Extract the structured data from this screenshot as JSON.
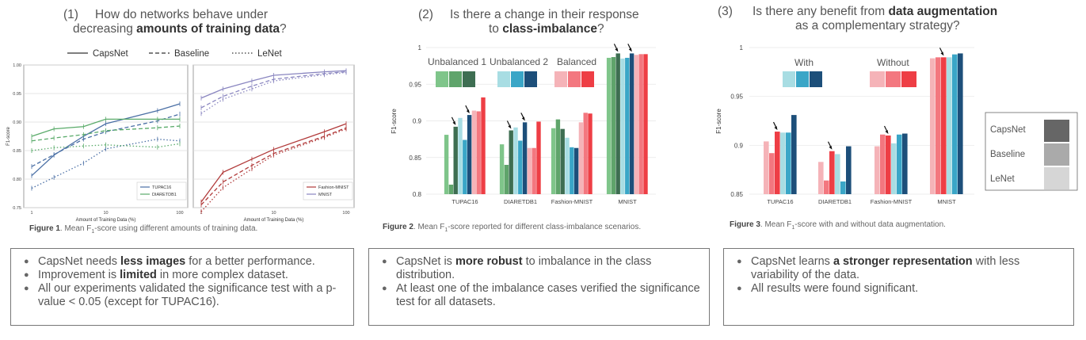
{
  "panels": [
    {
      "number": "(1)",
      "question_pre": "How do networks behave under",
      "question_mid": "decreasing ",
      "question_bold": "amounts of training data",
      "question_post": "?",
      "caption_bold": "Figure 1",
      "caption_text": ". Mean F",
      "caption_sub": "1",
      "caption_tail": "-score using different amounts of training data.",
      "bullets": [
        {
          "pre": "CapsNet needs ",
          "bold": "less images",
          "post": " for a better performance."
        },
        {
          "pre": "Improvement is ",
          "bold": "limited",
          "post": " in more complex dataset."
        },
        {
          "pre": "All our experiments validated the significance test with a p-value < 0.05 (except for TUPAC16).",
          "bold": "",
          "post": ""
        }
      ]
    },
    {
      "number": "(2)",
      "question_pre": "Is there a change in their response",
      "question_mid": "to ",
      "question_bold": "class-imbalance",
      "question_post": "?",
      "caption_bold": "Figure 2",
      "caption_text": ". Mean F",
      "caption_sub": "1",
      "caption_tail": "-score reported for different class-imbalance scenarios.",
      "bullets": [
        {
          "pre": "CapsNet is ",
          "bold": "more robust",
          "post": " to imbalance in the class distribution."
        },
        {
          "pre": "At least one of the imbalance cases verified the significance test for all datasets.",
          "bold": "",
          "post": ""
        }
      ]
    },
    {
      "number": "(3)",
      "question_pre": "Is there any benefit from ",
      "question_bold_first": "data augmentation",
      "question_line2": "as a complementary strategy?",
      "caption_bold": "Figure 3",
      "caption_text": ". Mean F",
      "caption_sub": "1",
      "caption_tail": "-score with and without data augmentation.",
      "bullets": [
        {
          "pre": "CapsNet learns ",
          "bold": "a stronger representation",
          "post": " with less variability of the data."
        },
        {
          "pre": "All results were found significant.",
          "bold": "",
          "post": ""
        }
      ]
    }
  ],
  "colors": {
    "green": [
      "#7fc58a",
      "#5fa46b",
      "#3e6e52"
    ],
    "blue": [
      "#a8dde3",
      "#3aa6c7",
      "#1d4f7a"
    ],
    "red": [
      "#f5b3b8",
      "#f3777f",
      "#ee3e45"
    ],
    "line_blue": "#4a6fa5",
    "line_green": "#5aab6a",
    "line_red": "#b13a3a",
    "line_purple": "#8a86c0"
  },
  "chart_data": [
    {
      "type": "line",
      "legend": [
        "CapsNet",
        "Baseline",
        "LeNet"
      ],
      "legend_styles": [
        "solid",
        "dashed",
        "dotted"
      ],
      "subplots": [
        {
          "xlabel": "Amount of Training Data (%)",
          "ylabel": "F1-score",
          "xscale": "log",
          "xticks": [
            "1",
            "10",
            "100"
          ],
          "yticks": [
            "0.75",
            "0.80",
            "0.85",
            "0.90",
            "0.95",
            "1.00"
          ],
          "ylim": [
            0.75,
            1.0
          ],
          "grid": true,
          "legend_position": "lower-right",
          "series": [
            {
              "name": "TUPAC16",
              "style": "solid",
              "x": [
                1,
                2,
                5,
                10,
                50,
                100
              ],
              "y": [
                0.806,
                0.842,
                0.875,
                0.897,
                0.92,
                0.932
              ]
            },
            {
              "name": "TUPAC16",
              "style": "dashed",
              "x": [
                1,
                2,
                5,
                10,
                50,
                100
              ],
              "y": [
                0.822,
                0.843,
                0.87,
                0.883,
                0.902,
                0.914
              ]
            },
            {
              "name": "TUPAC16",
              "style": "dotted",
              "x": [
                1,
                2,
                5,
                10,
                50,
                100
              ],
              "y": [
                0.784,
                0.803,
                0.828,
                0.853,
                0.87,
                0.867
              ]
            },
            {
              "name": "DIARETDB1",
              "style": "solid",
              "x": [
                1,
                2,
                5,
                10,
                50,
                100
              ],
              "y": [
                0.875,
                0.888,
                0.892,
                0.905,
                0.905,
                0.905
              ]
            },
            {
              "name": "DIARETDB1",
              "style": "dashed",
              "x": [
                1,
                2,
                5,
                10,
                50,
                100
              ],
              "y": [
                0.867,
                0.872,
                0.878,
                0.885,
                0.89,
                0.893
              ]
            },
            {
              "name": "DIARETDB1",
              "style": "dotted",
              "x": [
                1,
                2,
                5,
                10,
                50,
                100
              ],
              "y": [
                0.85,
                0.855,
                0.858,
                0.86,
                0.856,
                0.862
              ]
            }
          ],
          "legend_entries": [
            "TUPAC16",
            "DIARETDB1"
          ]
        },
        {
          "xlabel": "Amount of Training Data (%)",
          "xscale": "log",
          "xticks": [
            "1",
            "10",
            "100"
          ],
          "ylim": [
            0.75,
            1.0
          ],
          "grid": true,
          "legend_position": "lower-right",
          "series": [
            {
              "name": "Fashion-MNIST",
              "style": "solid",
              "x": [
                1,
                2,
                5,
                10,
                50,
                100
              ],
              "y": [
                0.76,
                0.812,
                0.835,
                0.852,
                0.883,
                0.897
              ]
            },
            {
              "name": "Fashion-MNIST",
              "style": "dashed",
              "x": [
                1,
                2,
                5,
                10,
                50,
                100
              ],
              "y": [
                0.755,
                0.795,
                0.824,
                0.845,
                0.875,
                0.89
              ]
            },
            {
              "name": "Fashion-MNIST",
              "style": "dotted",
              "x": [
                1,
                2,
                5,
                10,
                50,
                100
              ],
              "y": [
                0.743,
                0.785,
                0.818,
                0.842,
                0.873,
                0.888
              ]
            },
            {
              "name": "MNIST",
              "style": "solid",
              "x": [
                1,
                2,
                5,
                10,
                50,
                100
              ],
              "y": [
                0.942,
                0.958,
                0.972,
                0.982,
                0.988,
                0.99
              ]
            },
            {
              "name": "MNIST",
              "style": "dashed",
              "x": [
                1,
                2,
                5,
                10,
                50,
                100
              ],
              "y": [
                0.925,
                0.945,
                0.963,
                0.975,
                0.985,
                0.988
              ]
            },
            {
              "name": "MNIST",
              "style": "dotted",
              "x": [
                1,
                2,
                5,
                10,
                50,
                100
              ],
              "y": [
                0.915,
                0.94,
                0.958,
                0.972,
                0.983,
                0.987
              ]
            }
          ],
          "legend_entries": [
            "Fashion-MNIST",
            "MNIST"
          ]
        }
      ]
    },
    {
      "type": "bar",
      "ylabel": "F1-score",
      "ylim": [
        0.8,
        1.0
      ],
      "yticks": [
        "0.8",
        "0.85",
        "0.9",
        "0.95",
        "1"
      ],
      "categories": [
        "TUPAC16",
        "DIARETDB1",
        "Fashion-MNIST",
        "MNIST"
      ],
      "legend": [
        "Unbalanced 1",
        "Unbalanced 2",
        "Balanced"
      ],
      "series": [
        {
          "values": [
            0.881,
            0.868,
            0.89,
            0.986
          ]
        },
        {
          "values": [
            0.813,
            0.84,
            0.902,
            0.987
          ]
        },
        {
          "values": [
            0.892,
            0.887,
            0.889,
            0.992
          ]
        },
        {
          "values": [
            0.904,
            0.891,
            0.877,
            0.985
          ]
        },
        {
          "values": [
            0.874,
            0.873,
            0.864,
            0.986
          ]
        },
        {
          "values": [
            0.908,
            0.898,
            0.863,
            0.992
          ]
        },
        {
          "values": [
            0.914,
            0.863,
            0.898,
            0.99
          ]
        },
        {
          "values": [
            0.913,
            0.863,
            0.911,
            0.991
          ]
        },
        {
          "values": [
            0.932,
            0.899,
            0.91,
            0.991
          ]
        }
      ],
      "arrows": [
        [
          0,
          2
        ],
        [
          0,
          5
        ],
        [
          1,
          2
        ],
        [
          1,
          5
        ],
        [
          3,
          2
        ],
        [
          3,
          5
        ]
      ]
    },
    {
      "type": "bar",
      "ylabel": "F1-score",
      "ylim": [
        0.85,
        1.0
      ],
      "yticks": [
        "0.85",
        "0.9",
        "0.95",
        "1"
      ],
      "categories": [
        "TUPAC16",
        "DIARETDB1",
        "Fashion-MNIST",
        "MNIST"
      ],
      "legend_groups": [
        "With",
        "Without"
      ],
      "legend_models": [
        "CapsNet",
        "Baseline",
        "LeNet"
      ],
      "series": [
        {
          "values": [
            0.904,
            0.883,
            0.899,
            0.989
          ]
        },
        {
          "values": [
            0.892,
            0.864,
            0.911,
            0.99
          ]
        },
        {
          "values": [
            0.914,
            0.894,
            0.91,
            0.99
          ]
        },
        {
          "values": [
            0.913,
            0.891,
            0.902,
            0.99
          ]
        },
        {
          "values": [
            0.913,
            0.863,
            0.911,
            0.993
          ]
        },
        {
          "values": [
            0.931,
            0.899,
            0.912,
            0.994
          ]
        }
      ],
      "arrows": [
        [
          0,
          2
        ],
        [
          1,
          2
        ],
        [
          2,
          2
        ],
        [
          3,
          2
        ]
      ]
    }
  ]
}
